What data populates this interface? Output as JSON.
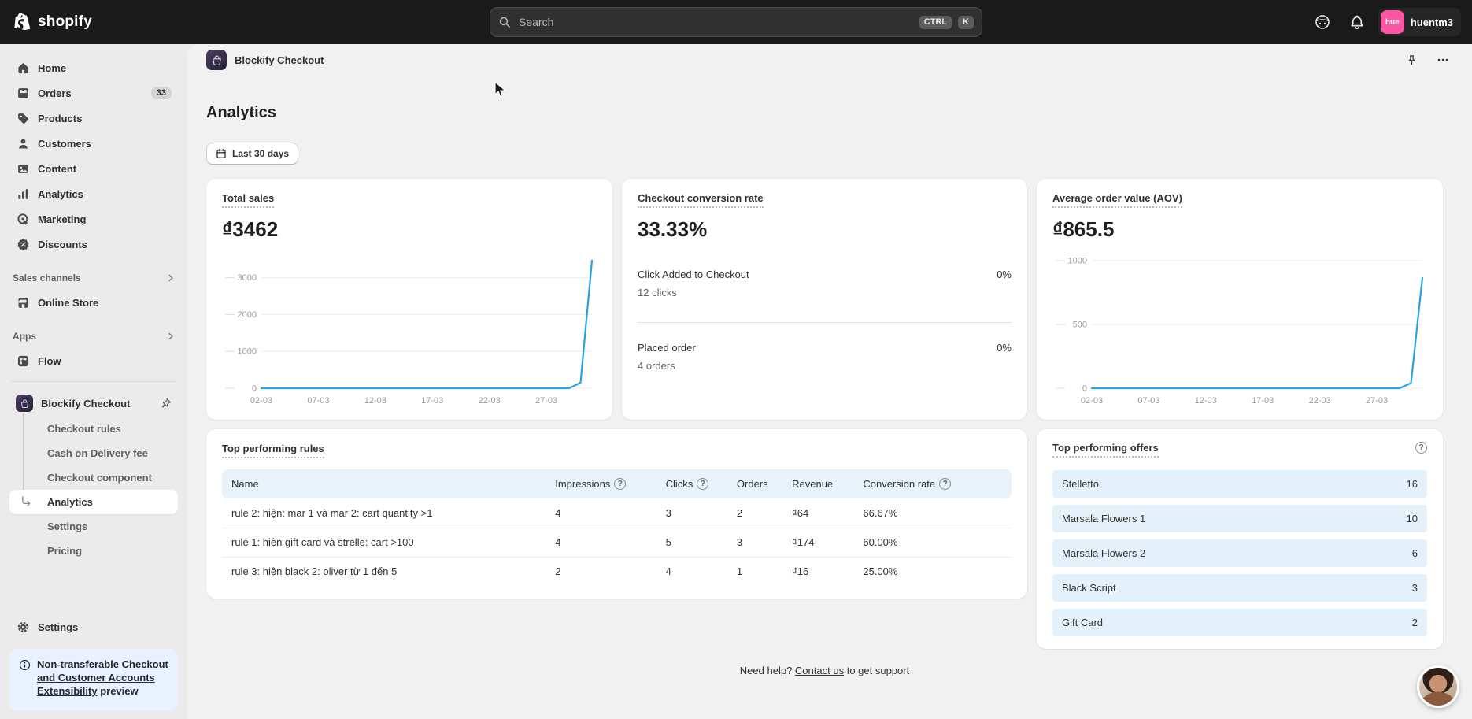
{
  "topbar": {
    "brand": "shopify",
    "search_placeholder": "Search",
    "shortcut_ctrl": "CTRL",
    "shortcut_k": "K",
    "user": {
      "initials": "hue",
      "name": "huentm3"
    }
  },
  "sidebar": {
    "items": [
      {
        "label": "Home"
      },
      {
        "label": "Orders",
        "badge": "33"
      },
      {
        "label": "Products"
      },
      {
        "label": "Customers"
      },
      {
        "label": "Content"
      },
      {
        "label": "Analytics"
      },
      {
        "label": "Marketing"
      },
      {
        "label": "Discounts"
      }
    ],
    "sections": {
      "sales_channels": "Sales channels",
      "apps": "Apps"
    },
    "online_store": "Online Store",
    "flow": "Flow",
    "app": {
      "name": "Blockify Checkout",
      "children": [
        "Checkout rules",
        "Cash on Delivery fee",
        "Checkout component",
        "Analytics",
        "Settings",
        "Pricing"
      ]
    },
    "settings": "Settings",
    "notice": {
      "plain": "Non-transferable ",
      "link": "Checkout and Customer Accounts Extensibility",
      "suffix": " preview"
    }
  },
  "app_header": {
    "title": "Blockify Checkout"
  },
  "page": {
    "title": "Analytics",
    "date_filter": "Last 30 days"
  },
  "cards": {
    "total_sales": {
      "title": "Total sales",
      "value": "₫3462"
    },
    "conversion": {
      "title": "Checkout conversion rate",
      "value": "33.33%",
      "rows": [
        {
          "label": "Click Added to Checkout",
          "sub": "12 clicks",
          "pct": "0%"
        },
        {
          "label": "Placed order",
          "sub": "4 orders",
          "pct": "0%"
        }
      ]
    },
    "aov": {
      "title": "Average order value (AOV)",
      "value": "₫865.5"
    }
  },
  "chart_data": [
    {
      "name": "total_sales",
      "type": "line",
      "title": "Total sales",
      "x_ticks": [
        "02-03",
        "07-03",
        "12-03",
        "17-03",
        "22-03",
        "27-03"
      ],
      "x_tick_idx": [
        0,
        5,
        10,
        15,
        20,
        25
      ],
      "y_ticks": [
        0,
        1000,
        2000,
        3000
      ],
      "ylim": [
        0,
        3462
      ],
      "values": [
        0,
        0,
        0,
        0,
        0,
        0,
        0,
        0,
        0,
        0,
        0,
        0,
        0,
        0,
        0,
        0,
        0,
        0,
        0,
        0,
        0,
        0,
        0,
        0,
        0,
        0,
        0,
        0,
        150,
        3462
      ],
      "color": "#2aa3dc",
      "grid": true,
      "legend": "none"
    },
    {
      "name": "average_order_value",
      "type": "line",
      "title": "Average order value (AOV)",
      "x_ticks": [
        "02-03",
        "07-03",
        "12-03",
        "17-03",
        "22-03",
        "27-03"
      ],
      "x_tick_idx": [
        0,
        5,
        10,
        15,
        20,
        25
      ],
      "y_ticks": [
        0,
        500,
        1000
      ],
      "ylim": [
        0,
        1000
      ],
      "values": [
        0,
        0,
        0,
        0,
        0,
        0,
        0,
        0,
        0,
        0,
        0,
        0,
        0,
        0,
        0,
        0,
        0,
        0,
        0,
        0,
        0,
        0,
        0,
        0,
        0,
        0,
        0,
        0,
        40,
        865.5
      ],
      "color": "#2aa3dc",
      "grid": true,
      "legend": "none"
    }
  ],
  "rules_table": {
    "title": "Top performing rules",
    "columns": [
      "Name",
      "Impressions",
      "Clicks",
      "Orders",
      "Revenue",
      "Conversion rate"
    ],
    "rows": [
      {
        "name": "rule 2: hiện: mar 1 và mar 2: cart quantity >1",
        "impressions": "4",
        "clicks": "3",
        "orders": "2",
        "revenue": "₫64",
        "conversion": "66.67%"
      },
      {
        "name": "rule 1: hiện gift card và strelle: cart >100",
        "impressions": "4",
        "clicks": "5",
        "orders": "3",
        "revenue": "₫174",
        "conversion": "60.00%"
      },
      {
        "name": "rule 3: hiện black 2: oliver từ 1 đến 5",
        "impressions": "2",
        "clicks": "4",
        "orders": "1",
        "revenue": "₫16",
        "conversion": "25.00%"
      }
    ]
  },
  "offers": {
    "title": "Top performing offers",
    "items": [
      {
        "name": "Stelletto",
        "count": "16"
      },
      {
        "name": "Marsala Flowers 1",
        "count": "10"
      },
      {
        "name": "Marsala Flowers 2",
        "count": "6"
      },
      {
        "name": "Black Script",
        "count": "3"
      },
      {
        "name": "Gift Card",
        "count": "2"
      }
    ]
  },
  "footer": {
    "prefix": "Need help?",
    "link": "Contact us",
    "suffix": "to get support"
  }
}
